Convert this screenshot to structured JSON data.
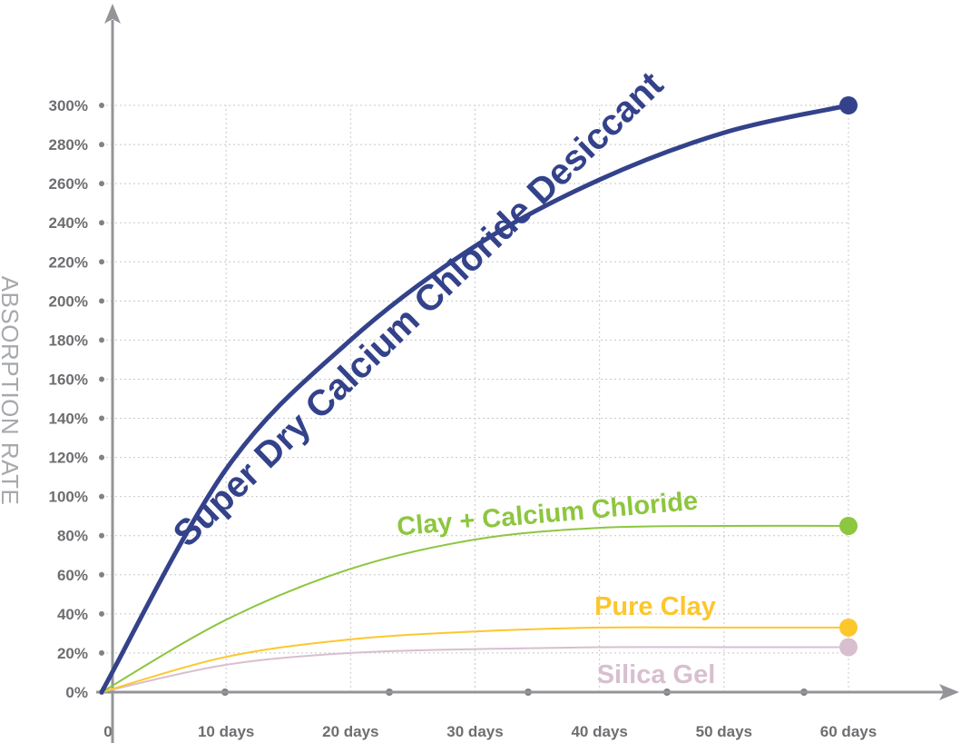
{
  "chart_data": {
    "type": "line",
    "title": "",
    "xlabel": "",
    "ylabel": "ABSORPTION RATE",
    "xlim": [
      0,
      60
    ],
    "ylim": [
      0,
      300
    ],
    "x_ticks": [
      "0",
      "10 days",
      "20 days",
      "30 days",
      "40 days",
      "50 days",
      "60 days"
    ],
    "y_ticks": [
      "0%",
      "20%",
      "40%",
      "60%",
      "80%",
      "100%",
      "120%",
      "140%",
      "160%",
      "180%",
      "200%",
      "220%",
      "240%",
      "260%",
      "280%",
      "300%"
    ],
    "grid": true,
    "x": [
      0,
      10,
      20,
      30,
      40,
      50,
      60
    ],
    "series": [
      {
        "name": "Super Dry Calcium Chloride Desiccant",
        "color": "#33428a",
        "values": [
          0,
          114,
          180,
          228,
          262,
          286,
          300
        ]
      },
      {
        "name": "Clay + Calcium Chloride",
        "color": "#8dc63f",
        "values": [
          0,
          37,
          63,
          78,
          84,
          85,
          85
        ]
      },
      {
        "name": "Pure Clay",
        "color": "#fcc72d",
        "values": [
          0,
          18,
          27,
          31,
          33,
          33,
          33
        ]
      },
      {
        "name": "Silica Gel",
        "color": "#d8bfcf",
        "values": [
          0,
          14,
          20,
          22,
          23,
          23,
          23
        ]
      }
    ]
  }
}
